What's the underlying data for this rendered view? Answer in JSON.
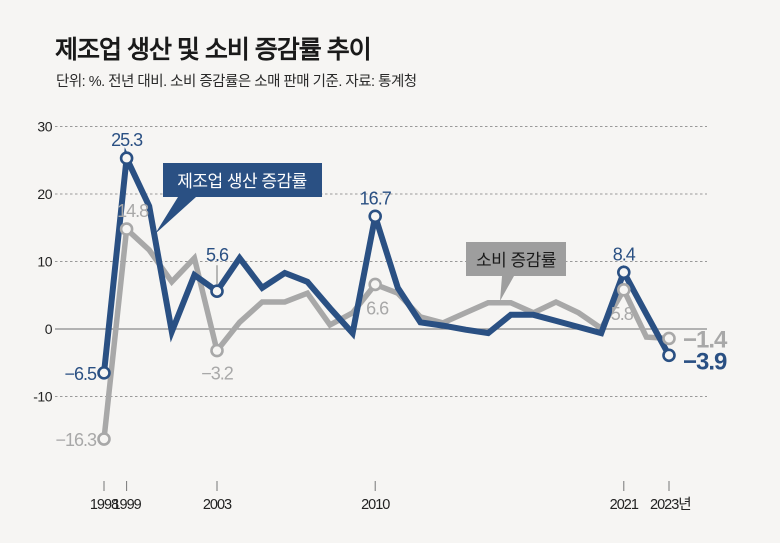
{
  "title": "제조업 생산 및 소비 증감률 추이",
  "subtitle": "단위: %. 전년 대비. 소비 증감률은 소매 판매 기준. 자료: 통계청",
  "colors": {
    "manufacturing": "#2a5083",
    "consumption": "#a8a8a8",
    "background": "#f6f5f3",
    "grid": "#999999"
  },
  "chart_data": {
    "type": "line",
    "title": "제조업 생산 및 소비 증감률 추이",
    "xlabel": "",
    "ylabel": "%",
    "ylim": [
      -20,
      30
    ],
    "yticks": [
      30,
      20,
      10,
      0,
      -10
    ],
    "ytick_labels": [
      "30",
      "20",
      "10",
      "0",
      "-10"
    ],
    "xtick_years": [
      1998,
      1999,
      2003,
      2010,
      2021,
      2023
    ],
    "xtick_labels": [
      "1998",
      "1999",
      "2003",
      "2010",
      "2021",
      "2023년"
    ],
    "grid": true,
    "x": [
      1998,
      1999,
      2000,
      2001,
      2002,
      2003,
      2004,
      2005,
      2006,
      2007,
      2008,
      2009,
      2010,
      2011,
      2012,
      2013,
      2014,
      2015,
      2016,
      2017,
      2018,
      2019,
      2020,
      2021,
      2022,
      2023
    ],
    "series": [
      {
        "name": "제조업 생산 증감률",
        "color_key": "manufacturing",
        "values": [
          -6.5,
          25.3,
          18.2,
          -0.4,
          8.0,
          5.6,
          10.5,
          6.1,
          8.3,
          7.0,
          3.1,
          -0.6,
          16.7,
          6.1,
          1.0,
          0.5,
          -0.1,
          -0.6,
          2.1,
          2.1,
          1.2,
          0.3,
          -0.6,
          8.4,
          2.2,
          -3.9
        ],
        "markers": [
          1998,
          1999,
          2003,
          2010,
          2021,
          2023
        ],
        "labels": [
          {
            "year": 1998,
            "text": "−6.5",
            "pos": "left"
          },
          {
            "year": 1999,
            "text": "25.3",
            "pos": "above"
          },
          {
            "year": 2003,
            "text": "5.6",
            "pos": "above-leader"
          },
          {
            "year": 2010,
            "text": "16.7",
            "pos": "above"
          },
          {
            "year": 2021,
            "text": "8.4",
            "pos": "above"
          },
          {
            "year": 2023,
            "text": "−3.9",
            "pos": "right-big"
          }
        ]
      },
      {
        "name": "소비 증감률",
        "color_key": "consumption",
        "values": [
          -16.3,
          14.8,
          11.7,
          7.0,
          10.5,
          -3.2,
          1.0,
          4.0,
          4.0,
          5.3,
          0.6,
          2.4,
          6.6,
          5.3,
          1.8,
          0.9,
          2.4,
          3.9,
          3.9,
          2.4,
          4.0,
          2.4,
          0.1,
          5.8,
          -1.2,
          -1.4
        ],
        "markers": [
          1998,
          1999,
          2003,
          2010,
          2021,
          2023
        ],
        "labels": [
          {
            "year": 1998,
            "text": "−16.3",
            "pos": "left"
          },
          {
            "year": 1999,
            "text": "14.8",
            "pos": "above"
          },
          {
            "year": 2003,
            "text": "−3.2",
            "pos": "below"
          },
          {
            "year": 2010,
            "text": "6.6",
            "pos": "below"
          },
          {
            "year": 2021,
            "text": "5.8",
            "pos": "below"
          },
          {
            "year": 2023,
            "text": "−1.4",
            "pos": "right-big"
          }
        ]
      }
    ],
    "callouts": [
      {
        "series": "제조업 생산 증감률",
        "text": "제조업 생산 증감률"
      },
      {
        "series": "소비 증감률",
        "text": "소비 증감률"
      }
    ]
  }
}
